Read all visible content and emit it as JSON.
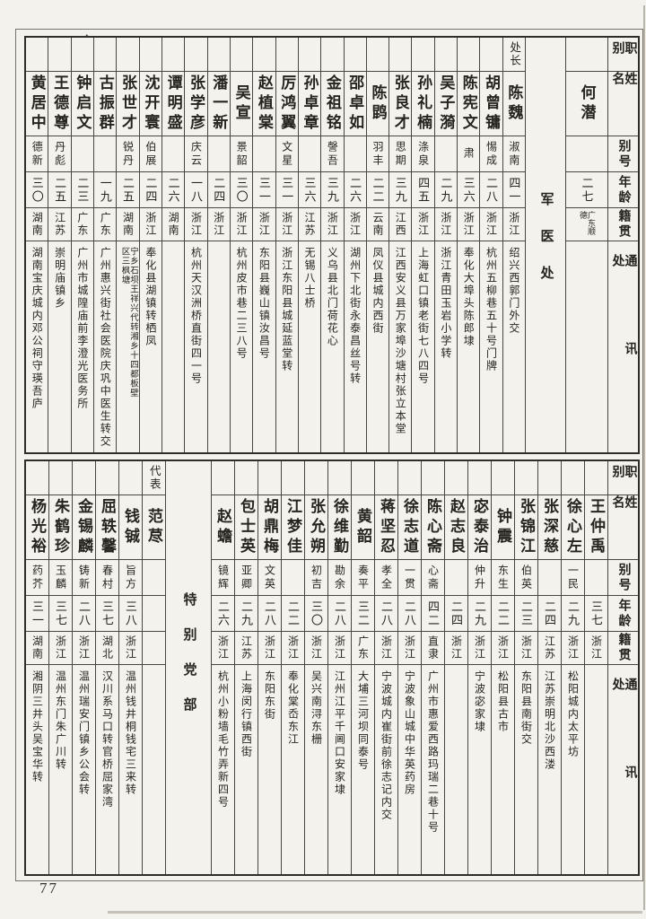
{
  "page": {
    "number": "77"
  },
  "colors": {
    "paper": "#f3f2ec",
    "ink": "#26241e"
  },
  "headers": {
    "zhibie": "职别",
    "xingming": "姓名",
    "biehao": "别号",
    "nianling": "年龄",
    "jiguan": "籍贯",
    "tongxunchu": "通讯处"
  },
  "sections": [
    {
      "band": "top",
      "columns": [
        {
          "type": "header"
        },
        {
          "type": "person",
          "wide": true,
          "title": "",
          "name": "何潜",
          "hao": "",
          "age": "二七",
          "native": "广东顺德",
          "addr": ""
        },
        {
          "type": "group",
          "label": "军医处"
        },
        {
          "type": "person",
          "title": "处长",
          "name": "陈魏",
          "hao": "淑南",
          "age": "四一",
          "native": "浙江",
          "addr": "绍兴西郭门外交"
        },
        {
          "type": "person",
          "title": "",
          "name": "胡曾镛",
          "hao": "惕成",
          "age": "二八",
          "native": "浙江",
          "addr": "杭州五柳巷五十号门牌"
        },
        {
          "type": "person",
          "title": "",
          "name": "陈宪文",
          "hao": "肃",
          "age": "三六",
          "native": "浙江",
          "addr": "奉化大埠头陈郎埭"
        },
        {
          "type": "person",
          "title": "",
          "name": "吴子漪",
          "hao": "",
          "age": "二九",
          "native": "浙江",
          "addr": "浙江青田玉岩小学转"
        },
        {
          "type": "person",
          "title": "",
          "name": "孙礼楠",
          "hao": "涤泉",
          "age": "四五",
          "native": "浙江",
          "addr": "上海虹口镇老街七八四号"
        },
        {
          "type": "person",
          "title": "",
          "name": "张良才",
          "hao": "思期",
          "age": "三九",
          "native": "江西",
          "addr": "江西安义县万家埠沙塘村张立本堂"
        },
        {
          "type": "person",
          "title": "",
          "name": "陈鹍",
          "hao": "羽丰",
          "age": "二二",
          "native": "云南",
          "addr": "凤仪县城内西街"
        },
        {
          "type": "person",
          "title": "",
          "name": "邵卓如",
          "hao": "",
          "age": "二六",
          "native": "浙江",
          "addr": "湖州下北街永泰昌丝号转"
        },
        {
          "type": "person",
          "title": "",
          "name": "金祖铭",
          "hao": "謦吾",
          "age": "三九",
          "native": "浙江",
          "addr": "义乌县北门荷花心"
        },
        {
          "type": "person",
          "title": "",
          "name": "孙卓章",
          "hao": "",
          "age": "三六",
          "native": "江苏",
          "addr": "无锡八士桥"
        },
        {
          "type": "person",
          "title": "",
          "name": "厉鸿翼",
          "hao": "文星",
          "age": "三一",
          "native": "浙江",
          "addr": "浙江东阳县城延蓝堂转"
        },
        {
          "type": "person",
          "title": "",
          "name": "赵植棠",
          "hao": "",
          "age": "三一",
          "native": "浙江",
          "addr": "东阳县巍山镇汝昌号"
        },
        {
          "type": "person",
          "title": "",
          "name": "吴宣",
          "hao": "景韶",
          "age": "三〇",
          "native": "浙江",
          "addr": "杭州皮市巷二三八号"
        },
        {
          "type": "person",
          "title": "",
          "name": "潘一新",
          "hao": "",
          "age": "二四",
          "native": "浙江",
          "addr": ""
        },
        {
          "type": "person",
          "title": "",
          "name": "张学彦",
          "hao": "庆云",
          "age": "一八",
          "native": "浙江",
          "addr": "杭州天汉洲桥直街四一号"
        },
        {
          "type": "person",
          "title": "",
          "name": "谭明盛",
          "hao": "",
          "age": "二六",
          "native": "湖南",
          "addr": ""
        },
        {
          "type": "person",
          "title": "",
          "name": "沈开寰",
          "hao": "伯展",
          "age": "二四",
          "native": "浙江",
          "addr": "奉化县湖镇转栖凤"
        },
        {
          "type": "person",
          "title": "",
          "name": "张世才",
          "hao": "锐丹",
          "age": "二五",
          "native": "湖南",
          "addr": "宁乡石坝王祥兴代转湘乡十四都板壁区三枫塘"
        },
        {
          "type": "person",
          "title": "",
          "name": "古振群",
          "hao": "",
          "age": "一九",
          "native": "广东",
          "addr": "广州惠兴街社会医院庆巩中医生转交"
        },
        {
          "type": "person",
          "title": "",
          "name": "钟启文",
          "hao": "",
          "age": "二三",
          "native": "广东",
          "addr": "广州市城隍庙前李澄光医务所"
        },
        {
          "type": "person",
          "title": "",
          "name": "王德尊",
          "hao": "丹彪",
          "age": "二五",
          "native": "江苏",
          "addr": "崇明庙镇乡"
        },
        {
          "type": "person",
          "title": "",
          "name": "黄居中",
          "hao": "德新",
          "age": "三〇",
          "native": "湖南",
          "addr": "湖南宝庆城内邓公祠守瑛吾庐"
        }
      ]
    },
    {
      "band": "bottom",
      "columns": [
        {
          "type": "header"
        },
        {
          "type": "person",
          "title": "",
          "name": "王仲禹",
          "hao": "",
          "age": "三七",
          "native": "浙江",
          "addr": ""
        },
        {
          "type": "person",
          "title": "",
          "name": "徐心左",
          "hao": "一民",
          "age": "二九",
          "native": "浙江",
          "addr": "松阳城内太平坊"
        },
        {
          "type": "person",
          "title": "",
          "name": "张深慈",
          "hao": "",
          "age": "二四",
          "native": "江苏",
          "addr": "江苏崇明北沙西溇"
        },
        {
          "type": "person",
          "title": "",
          "name": "张锦江",
          "hao": "伯英",
          "age": "二三",
          "native": "浙江",
          "addr": "东阳县南街交"
        },
        {
          "type": "person",
          "title": "",
          "name": "钟震",
          "hao": "东生",
          "age": "二二",
          "native": "浙江",
          "addr": "松阳县古市"
        },
        {
          "type": "person",
          "title": "",
          "name": "宓泰治",
          "hao": "仲升",
          "age": "二九",
          "native": "浙江",
          "addr": "宁波宓家埭"
        },
        {
          "type": "person",
          "title": "",
          "name": "赵志良",
          "hao": "",
          "age": "二四",
          "native": "浙江",
          "addr": ""
        },
        {
          "type": "person",
          "title": "",
          "name": "陈心斋",
          "hao": "心斋",
          "age": "四二",
          "native": "直隶",
          "addr": "广州市惠爱西路玛瑞二巷十号"
        },
        {
          "type": "person",
          "title": "",
          "name": "徐志道",
          "hao": "一贯",
          "age": "二八",
          "native": "浙江",
          "addr": "宁波象山城中华英药房"
        },
        {
          "type": "person",
          "title": "",
          "name": "蒋坚忍",
          "hao": "孝全",
          "age": "二八",
          "native": "浙江",
          "addr": "宁波城内崔街前徐志记内交"
        },
        {
          "type": "person",
          "title": "",
          "name": "黄韶",
          "hao": "奏平",
          "age": "三二",
          "native": "广东",
          "addr": "大埔三河坝同泰号"
        },
        {
          "type": "person",
          "title": "",
          "name": "徐维勤",
          "hao": "勘余",
          "age": "二八",
          "native": "浙江",
          "addr": "江州江平千阃口安家埭"
        },
        {
          "type": "person",
          "title": "",
          "name": "张允朔",
          "hao": "初吉",
          "age": "三〇",
          "native": "浙江",
          "addr": "吴兴南浔东栅"
        },
        {
          "type": "person",
          "title": "",
          "name": "江梦佳",
          "hao": "",
          "age": "二二",
          "native": "浙江",
          "addr": "奉化棠岙东江"
        },
        {
          "type": "person",
          "title": "",
          "name": "胡鼎梅",
          "hao": "文英",
          "age": "二八",
          "native": "浙江",
          "addr": "东阳东街"
        },
        {
          "type": "person",
          "title": "",
          "name": "包士英",
          "hao": "亚卿",
          "age": "二九",
          "native": "江苏",
          "addr": "上海闵行镇西街"
        },
        {
          "type": "person",
          "title": "",
          "name": "赵蟾",
          "hao": "镜辉",
          "age": "二六",
          "native": "浙江",
          "addr": "杭州小粉墙毛竹弄新四号"
        },
        {
          "type": "group",
          "label": "特别党部"
        },
        {
          "type": "person",
          "title": "代表",
          "name": "范荩",
          "hao": "",
          "age": "",
          "native": "",
          "addr": ""
        },
        {
          "type": "person",
          "title": "",
          "name": "钱铖",
          "hao": "旨方",
          "age": "三八",
          "native": "浙江",
          "addr": "温州钱井桐钱宅三来转"
        },
        {
          "type": "person",
          "title": "",
          "name": "屈轶馨",
          "hao": "春村",
          "age": "三七",
          "native": "湖北",
          "addr": "汉川系马口转官桥屈家湾"
        },
        {
          "type": "person",
          "title": "",
          "name": "金锡麟",
          "hao": "铸新",
          "age": "二八",
          "native": "浙江",
          "addr": "温州瑞安门镇乡公会转"
        },
        {
          "type": "person",
          "title": "",
          "name": "朱鹤珍",
          "hao": "玉麟",
          "age": "三七",
          "native": "浙江",
          "addr": "温州东门朱广川转"
        },
        {
          "type": "person",
          "title": "",
          "name": "杨光裕",
          "hao": "药芥",
          "age": "三一",
          "native": "湖南",
          "addr": "湘阴三井头吴宝华转"
        }
      ]
    }
  ]
}
